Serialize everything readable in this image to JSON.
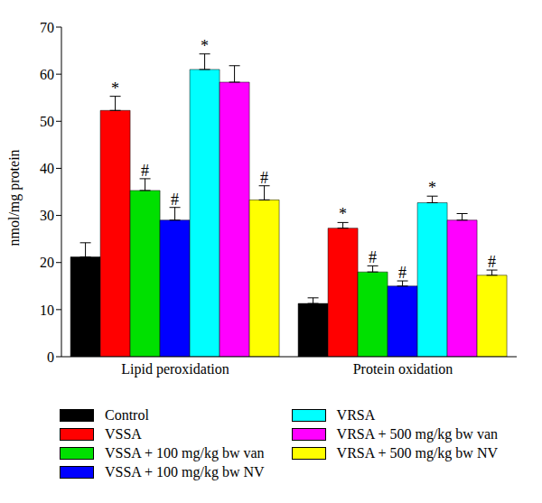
{
  "chart_data": {
    "type": "bar",
    "categories": [
      "Lipid peroxidation",
      "Protein oxidation"
    ],
    "y_label": "nmol/mg protein",
    "ylim": [
      0,
      70
    ],
    "yticks": [
      0,
      10,
      20,
      30,
      40,
      50,
      60,
      70
    ],
    "grid": false,
    "series": [
      {
        "name": "Control",
        "color": "#000000",
        "values": [
          21.2,
          11.3
        ],
        "errors": [
          3.0,
          1.2
        ],
        "significance": [
          null,
          null
        ]
      },
      {
        "name": "VSSA",
        "color": "#ff0000",
        "values": [
          52.3,
          27.3
        ],
        "errors": [
          3.0,
          1.2
        ],
        "significance": [
          "*",
          "*"
        ]
      },
      {
        "name": "VSSA + 100 mg/kg bw van",
        "color": "#00e000",
        "values": [
          35.3,
          18.0
        ],
        "errors": [
          2.5,
          1.3
        ],
        "significance": [
          "#",
          "#"
        ]
      },
      {
        "name": "VSSA + 100 mg/kg bw NV",
        "color": "#0000ff",
        "values": [
          29.0,
          15.0
        ],
        "errors": [
          2.7,
          1.1
        ],
        "significance": [
          "#",
          "#"
        ]
      },
      {
        "name": "VRSA",
        "color": "#00ffff",
        "values": [
          61.0,
          32.7
        ],
        "errors": [
          3.3,
          1.4
        ],
        "significance": [
          "*",
          "*"
        ]
      },
      {
        "name": "VRSA + 500 mg/kg bw van",
        "color": "#ff00ff",
        "values": [
          58.3,
          29.0
        ],
        "errors": [
          3.5,
          1.4
        ],
        "significance": [
          null,
          null
        ]
      },
      {
        "name": "VRSA + 500 mg/kg bw NV",
        "color": "#ffff00",
        "values": [
          33.3,
          17.3
        ],
        "errors": [
          3.0,
          1.1
        ],
        "significance": [
          "#",
          "#"
        ]
      }
    ]
  }
}
